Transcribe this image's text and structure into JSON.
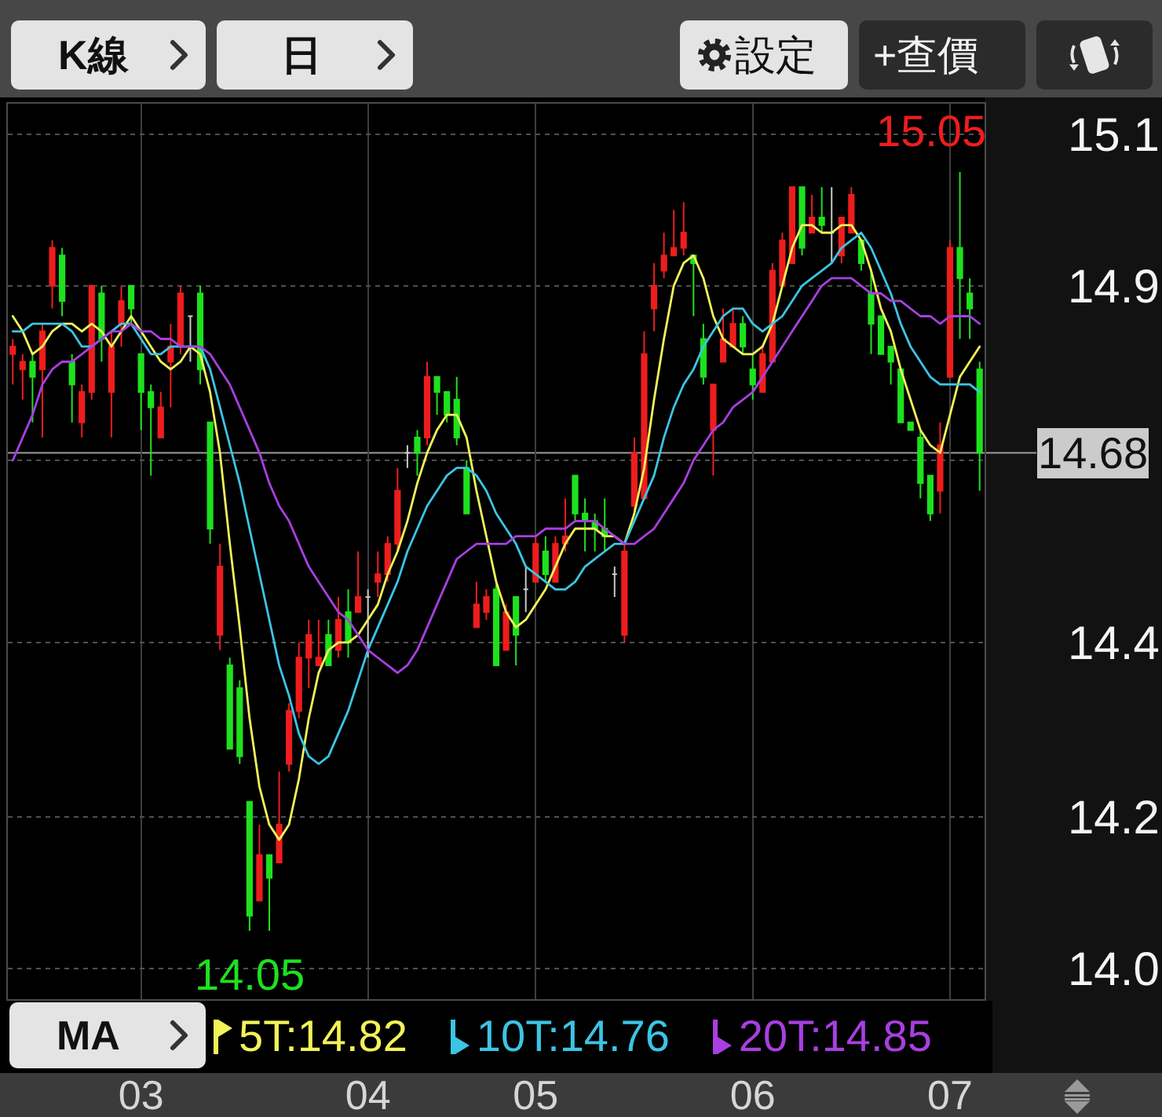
{
  "chart_data": {
    "type": "candlestick",
    "categories": [
      null,
      null,
      null,
      null,
      null,
      null,
      null,
      null,
      null,
      null,
      null,
      null,
      null,
      "03",
      null,
      null,
      null,
      null,
      null,
      null,
      null,
      null,
      null,
      null,
      null,
      null,
      null,
      null,
      null,
      null,
      null,
      null,
      null,
      null,
      null,
      null,
      "04",
      null,
      null,
      null,
      null,
      null,
      null,
      null,
      null,
      null,
      null,
      null,
      null,
      null,
      null,
      null,
      null,
      "05",
      null,
      null,
      null,
      null,
      null,
      null,
      null,
      null,
      null,
      null,
      null,
      null,
      null,
      null,
      null,
      null,
      null,
      null,
      null,
      null,
      null,
      "06",
      null,
      null,
      null,
      null,
      null,
      null,
      null,
      null,
      null,
      null,
      null,
      null,
      null,
      null,
      null,
      null,
      null,
      null,
      null,
      "07",
      null,
      null,
      null
    ],
    "ohlc": [
      [
        14.81,
        14.83,
        14.77,
        14.82
      ],
      [
        14.79,
        14.81,
        14.75,
        14.8
      ],
      [
        14.8,
        14.81,
        14.72,
        14.78
      ],
      [
        14.79,
        14.85,
        14.7,
        14.84
      ],
      [
        14.9,
        14.96,
        14.87,
        14.95
      ],
      [
        14.94,
        14.95,
        14.86,
        14.88
      ],
      [
        14.8,
        14.81,
        14.72,
        14.77
      ],
      [
        14.72,
        14.77,
        14.7,
        14.76
      ],
      [
        14.76,
        14.9,
        14.75,
        14.9
      ],
      [
        14.89,
        14.9,
        14.8,
        14.83
      ],
      [
        14.76,
        14.84,
        14.7,
        14.82
      ],
      [
        14.85,
        14.9,
        14.82,
        14.88
      ],
      [
        14.9,
        14.9,
        14.85,
        14.87
      ],
      [
        14.81,
        14.81,
        14.71,
        14.76
      ],
      [
        14.76,
        14.77,
        14.65,
        14.74
      ],
      [
        14.7,
        14.76,
        14.7,
        14.74
      ],
      [
        14.8,
        14.85,
        14.74,
        14.82
      ],
      [
        14.82,
        14.9,
        14.81,
        14.89
      ],
      [
        14.86,
        14.86,
        14.8,
        14.86
      ],
      [
        14.89,
        14.9,
        14.77,
        14.79
      ],
      [
        14.72,
        14.72,
        14.56,
        14.58
      ],
      [
        14.44,
        14.56,
        14.42,
        14.53
      ],
      [
        14.4,
        14.41,
        14.29,
        14.29
      ],
      [
        14.37,
        14.38,
        14.27,
        14.28
      ],
      [
        14.22,
        14.22,
        14.05,
        14.07
      ],
      [
        14.09,
        14.19,
        14.09,
        14.15
      ],
      [
        14.15,
        14.15,
        14.05,
        14.12
      ],
      [
        14.14,
        14.26,
        14.14,
        14.19
      ],
      [
        14.27,
        14.35,
        14.26,
        14.34
      ],
      [
        14.34,
        14.43,
        14.33,
        14.41
      ],
      [
        14.41,
        14.46,
        14.37,
        14.44
      ],
      [
        14.4,
        14.46,
        14.4,
        14.41
      ],
      [
        14.44,
        14.46,
        14.4,
        14.4
      ],
      [
        14.42,
        14.49,
        14.41,
        14.46
      ],
      [
        14.47,
        14.5,
        14.41,
        14.43
      ],
      [
        14.47,
        14.55,
        14.47,
        14.49
      ],
      [
        14.49,
        14.5,
        14.41,
        14.49
      ],
      [
        14.51,
        14.55,
        14.49,
        14.52
      ],
      [
        14.52,
        14.57,
        14.51,
        14.56
      ],
      [
        14.56,
        14.66,
        14.55,
        14.63
      ],
      [
        14.68,
        14.69,
        14.66,
        14.68
      ],
      [
        14.7,
        14.71,
        14.65,
        14.68
      ],
      [
        14.7,
        14.8,
        14.69,
        14.78
      ],
      [
        14.78,
        14.78,
        14.73,
        14.76
      ],
      [
        14.76,
        14.76,
        14.72,
        14.73
      ],
      [
        14.75,
        14.78,
        14.69,
        14.7
      ],
      [
        14.66,
        14.67,
        14.6,
        14.6
      ],
      [
        14.45,
        14.51,
        14.45,
        14.48
      ],
      [
        14.47,
        14.5,
        14.46,
        14.49
      ],
      [
        14.5,
        14.51,
        14.4,
        14.4
      ],
      [
        14.42,
        14.48,
        14.42,
        14.47
      ],
      [
        14.49,
        14.49,
        14.4,
        14.44
      ],
      [
        14.5,
        14.53,
        14.47,
        14.5
      ],
      [
        14.51,
        14.57,
        14.51,
        14.56
      ],
      [
        14.55,
        14.57,
        14.51,
        14.52
      ],
      [
        14.51,
        14.57,
        14.51,
        14.56
      ],
      [
        14.56,
        14.62,
        14.55,
        14.57
      ],
      [
        14.65,
        14.65,
        14.59,
        14.6
      ],
      [
        14.6,
        14.62,
        14.55,
        14.59
      ],
      [
        14.59,
        14.6,
        14.55,
        14.58
      ],
      [
        14.58,
        14.62,
        14.55,
        14.57
      ],
      [
        14.52,
        14.53,
        14.49,
        14.52
      ],
      [
        14.44,
        14.56,
        14.43,
        14.55
      ],
      [
        14.61,
        14.7,
        14.6,
        14.68
      ],
      [
        14.62,
        14.84,
        14.62,
        14.81
      ],
      [
        14.87,
        14.93,
        14.84,
        14.9
      ],
      [
        14.92,
        14.97,
        14.91,
        14.94
      ],
      [
        14.94,
        15.0,
        14.94,
        14.95
      ],
      [
        14.95,
        15.01,
        14.94,
        14.97
      ],
      [
        14.94,
        14.94,
        14.86,
        14.93
      ],
      [
        14.83,
        14.85,
        14.77,
        14.78
      ],
      [
        14.71,
        14.77,
        14.65,
        14.77
      ],
      [
        14.8,
        14.87,
        14.8,
        14.83
      ],
      [
        14.82,
        14.87,
        14.82,
        14.85
      ],
      [
        14.85,
        14.86,
        14.81,
        14.82
      ],
      [
        14.79,
        14.81,
        14.75,
        14.77
      ],
      [
        14.76,
        14.82,
        14.76,
        14.81
      ],
      [
        14.8,
        14.93,
        14.8,
        14.92
      ],
      [
        14.9,
        14.97,
        14.9,
        14.96
      ],
      [
        14.93,
        15.03,
        14.93,
        15.03
      ],
      [
        15.03,
        15.03,
        14.94,
        14.95
      ],
      [
        14.97,
        15.02,
        14.97,
        14.99
      ],
      [
        14.99,
        15.03,
        14.97,
        14.98
      ],
      [
        14.97,
        15.03,
        14.93,
        14.97
      ],
      [
        14.94,
        14.99,
        14.93,
        14.99
      ],
      [
        14.97,
        15.03,
        14.97,
        15.02
      ],
      [
        14.96,
        14.96,
        14.92,
        14.93
      ],
      [
        14.89,
        14.92,
        14.81,
        14.85
      ],
      [
        14.86,
        14.86,
        14.81,
        14.81
      ],
      [
        14.82,
        14.82,
        14.77,
        14.8
      ],
      [
        14.79,
        14.79,
        14.72,
        14.72
      ],
      [
        14.72,
        14.72,
        14.71,
        14.71
      ],
      [
        14.7,
        14.71,
        14.62,
        14.64
      ],
      [
        14.65,
        14.65,
        14.59,
        14.6
      ],
      [
        14.63,
        14.72,
        14.6,
        14.69
      ],
      [
        14.78,
        14.96,
        14.78,
        14.95
      ],
      [
        14.95,
        15.05,
        14.83,
        14.91
      ],
      [
        14.89,
        14.91,
        14.83,
        14.87
      ],
      [
        14.79,
        14.8,
        14.63,
        14.68
      ]
    ],
    "colors": [
      "#ee1d1d",
      "#ee1d1d",
      "#1ee11e",
      "#ee1d1d",
      "#ee1d1d",
      "#1ee11e",
      "#1ee11e",
      "#ee1d1d",
      "#ee1d1d",
      "#1ee11e",
      "#ee1d1d",
      "#ee1d1d",
      "#1ee11e",
      "#1ee11e",
      "#1ee11e",
      "#ee1d1d",
      "#ee1d1d",
      "#ee1d1d",
      "#c8c8c8",
      "#1ee11e",
      "#1ee11e",
      "#ee1d1d",
      "#1ee11e",
      "#1ee11e",
      "#1ee11e",
      "#ee1d1d",
      "#1ee11e",
      "#ee1d1d",
      "#ee1d1d",
      "#ee1d1d",
      "#ee1d1d",
      "#ee1d1d",
      "#1ee11e",
      "#ee1d1d",
      "#1ee11e",
      "#ee1d1d",
      "#c8c8c8",
      "#ee1d1d",
      "#ee1d1d",
      "#ee1d1d",
      "#c8c8c8",
      "#1ee11e",
      "#ee1d1d",
      "#1ee11e",
      "#1ee11e",
      "#1ee11e",
      "#1ee11e",
      "#ee1d1d",
      "#ee1d1d",
      "#1ee11e",
      "#ee1d1d",
      "#1ee11e",
      "#c8c8c8",
      "#ee1d1d",
      "#1ee11e",
      "#ee1d1d",
      "#ee1d1d",
      "#1ee11e",
      "#1ee11e",
      "#1ee11e",
      "#1ee11e",
      "#c8c8c8",
      "#ee1d1d",
      "#ee1d1d",
      "#ee1d1d",
      "#ee1d1d",
      "#ee1d1d",
      "#ee1d1d",
      "#ee1d1d",
      "#1ee11e",
      "#1ee11e",
      "#ee1d1d",
      "#ee1d1d",
      "#ee1d1d",
      "#1ee11e",
      "#1ee11e",
      "#ee1d1d",
      "#ee1d1d",
      "#ee1d1d",
      "#ee1d1d",
      "#1ee11e",
      "#ee1d1d",
      "#1ee11e",
      "#c8c8c8",
      "#ee1d1d",
      "#ee1d1d",
      "#1ee11e",
      "#1ee11e",
      "#1ee11e",
      "#1ee11e",
      "#1ee11e",
      "#1ee11e",
      "#1ee11e",
      "#1ee11e",
      "#ee1d1d",
      "#ee1d1d",
      "#1ee11e",
      "#1ee11e",
      "#1ee11e"
    ],
    "series": [
      {
        "type": "line",
        "name": "5T:14.82",
        "color": "#f2f25a",
        "values": [
          14.86,
          14.84,
          14.81,
          14.82,
          14.84,
          14.85,
          14.85,
          14.84,
          14.85,
          14.84,
          14.82,
          14.84,
          14.86,
          14.84,
          14.82,
          14.8,
          14.79,
          14.8,
          14.82,
          14.81,
          14.76,
          14.68,
          14.56,
          14.45,
          14.33,
          14.24,
          14.19,
          14.17,
          14.19,
          14.25,
          14.33,
          14.39,
          14.42,
          14.43,
          14.43,
          14.44,
          14.46,
          14.48,
          14.52,
          14.55,
          14.59,
          14.64,
          14.68,
          14.71,
          14.73,
          14.73,
          14.7,
          14.63,
          14.57,
          14.51,
          14.47,
          14.45,
          14.46,
          14.48,
          14.5,
          14.53,
          14.56,
          14.58,
          14.58,
          14.58,
          14.57,
          14.57,
          14.56,
          14.6,
          14.66,
          14.75,
          14.83,
          14.9,
          14.93,
          14.94,
          14.91,
          14.86,
          14.83,
          14.82,
          14.81,
          14.81,
          14.82,
          14.85,
          14.9,
          14.95,
          14.98,
          14.98,
          14.97,
          14.97,
          14.98,
          14.98,
          14.96,
          14.92,
          14.87,
          14.84,
          14.79,
          14.75,
          14.71,
          14.69,
          14.68,
          14.73,
          14.78,
          14.8,
          14.82
        ]
      },
      {
        "type": "line",
        "name": "10T:14.76",
        "color": "#3cc4e4",
        "values": [
          14.84,
          14.84,
          14.85,
          14.85,
          14.85,
          14.85,
          14.84,
          14.82,
          14.82,
          14.83,
          14.84,
          14.85,
          14.85,
          14.83,
          14.81,
          14.81,
          14.82,
          14.82,
          14.82,
          14.82,
          14.79,
          14.74,
          14.69,
          14.64,
          14.58,
          14.52,
          14.46,
          14.4,
          14.36,
          14.31,
          14.28,
          14.27,
          14.28,
          14.31,
          14.34,
          14.38,
          14.42,
          14.45,
          14.48,
          14.51,
          14.55,
          14.58,
          14.61,
          14.63,
          14.65,
          14.66,
          14.66,
          14.65,
          14.63,
          14.6,
          14.58,
          14.56,
          14.53,
          14.52,
          14.51,
          14.5,
          14.5,
          14.51,
          14.53,
          14.54,
          14.55,
          14.56,
          14.56,
          14.59,
          14.62,
          14.65,
          14.7,
          14.74,
          14.77,
          14.79,
          14.82,
          14.84,
          14.86,
          14.87,
          14.87,
          14.85,
          14.84,
          14.85,
          14.86,
          14.88,
          14.9,
          14.91,
          14.92,
          14.93,
          14.95,
          14.96,
          14.97,
          14.95,
          14.92,
          14.89,
          14.85,
          14.82,
          14.8,
          14.78,
          14.77,
          14.77,
          14.77,
          14.77,
          14.76
        ]
      },
      {
        "type": "line",
        "name": "20T:14.85",
        "color": "#a83fe0",
        "values": [
          14.67,
          14.7,
          14.73,
          14.77,
          14.79,
          14.8,
          14.8,
          14.81,
          14.82,
          14.83,
          14.84,
          14.84,
          14.85,
          14.84,
          14.84,
          14.83,
          14.83,
          14.82,
          14.82,
          14.82,
          14.81,
          14.79,
          14.77,
          14.74,
          14.71,
          14.68,
          14.64,
          14.61,
          14.59,
          14.56,
          14.53,
          14.51,
          14.49,
          14.47,
          14.46,
          14.44,
          14.42,
          14.41,
          14.4,
          14.39,
          14.4,
          14.42,
          14.45,
          14.48,
          14.51,
          14.54,
          14.55,
          14.56,
          14.56,
          14.56,
          14.56,
          14.57,
          14.57,
          14.57,
          14.58,
          14.58,
          14.58,
          14.59,
          14.59,
          14.59,
          14.58,
          14.57,
          14.56,
          14.56,
          14.57,
          14.58,
          14.6,
          14.62,
          14.64,
          14.67,
          14.69,
          14.71,
          14.72,
          14.74,
          14.75,
          14.76,
          14.78,
          14.8,
          14.82,
          14.84,
          14.86,
          14.88,
          14.9,
          14.91,
          14.91,
          14.91,
          14.9,
          14.89,
          14.89,
          14.88,
          14.88,
          14.87,
          14.86,
          14.86,
          14.85,
          14.86,
          14.86,
          14.86,
          14.85
        ]
      }
    ],
    "ylim": [
      13.96,
      15.14
    ],
    "yticks": [
      15.1,
      14.9,
      {
        "value": 14.67,
        "label": null
      },
      {
        "value": 14.43,
        "label": "14.4"
      },
      14.2,
      {
        "value": 14,
        "label": "14.0"
      }
    ],
    "grid": true,
    "legend": "bottom",
    "ref_lines": [
      {
        "axis": "y",
        "value": 14.68,
        "label": "14.68",
        "color": "#9c9c9c"
      }
    ],
    "annotations": [
      "K線",
      "日",
      "設定",
      "+查價",
      "MA",
      "15.05",
      "14.05"
    ]
  }
}
